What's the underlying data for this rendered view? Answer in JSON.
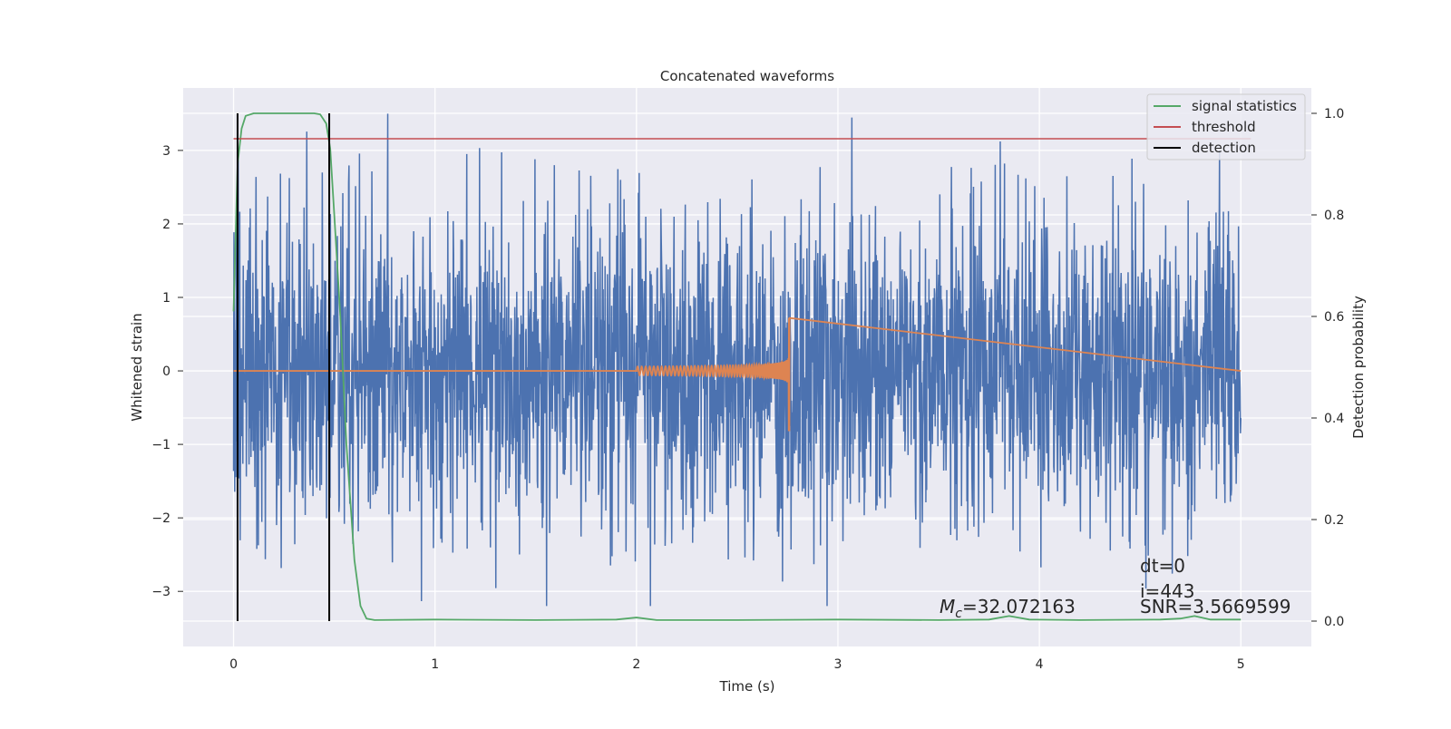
{
  "chart_data": {
    "type": "line",
    "title": "Concatenated waveforms",
    "xlabel": "Time (s)",
    "ylabel": "Whitened strain",
    "ylabel_right": "Detection probability",
    "xlim": [
      -0.25,
      5.35
    ],
    "ylim": [
      -3.75,
      3.85
    ],
    "ylim_right": [
      -0.05,
      1.05
    ],
    "x_ticks": [
      0,
      1,
      2,
      3,
      4,
      5
    ],
    "y_ticks": [
      -3,
      -2,
      -1,
      0,
      1,
      2,
      3
    ],
    "y_ticks_right": [
      0.0,
      0.2,
      0.4,
      0.6,
      0.8,
      1.0
    ],
    "grid": true,
    "legend_position": "top-right",
    "legend": [
      {
        "label": "signal statistics",
        "color": "#55a868"
      },
      {
        "label": "threshold",
        "color": "#c44e52"
      },
      {
        "label": "detection",
        "color": "#000000"
      }
    ],
    "noise_series": {
      "color": "#4c72b0",
      "x_start": 0,
      "x_end": 5,
      "amplitude_range": [
        -3.2,
        3.5
      ]
    },
    "injected_signal": {
      "color": "#dd8452",
      "x_start": 2.0,
      "x_end": 2.76,
      "peak_amplitude": 0.72,
      "min_amplitude": -0.82
    },
    "signal_statistics": {
      "x": [
        0,
        0.02,
        0.04,
        0.06,
        0.1,
        0.2,
        0.3,
        0.4,
        0.43,
        0.46,
        0.48,
        0.5,
        0.53,
        0.56,
        0.6,
        0.63,
        0.66,
        0.7,
        1.0,
        1.5,
        1.9,
        2.0,
        2.1,
        2.5,
        3.0,
        3.5,
        3.75,
        3.85,
        3.95,
        4.2,
        4.6,
        4.7,
        4.77,
        4.85,
        5.0
      ],
      "y": [
        0.61,
        0.9,
        0.97,
        0.995,
        1.0,
        1.0,
        1.0,
        1.0,
        0.998,
        0.98,
        0.93,
        0.8,
        0.6,
        0.35,
        0.12,
        0.03,
        0.005,
        0.002,
        0.003,
        0.002,
        0.003,
        0.007,
        0.002,
        0.002,
        0.003,
        0.002,
        0.003,
        0.01,
        0.003,
        0.002,
        0.003,
        0.005,
        0.01,
        0.003,
        0.003
      ]
    },
    "threshold": {
      "x": [
        0,
        5.05
      ],
      "y": 0.95
    },
    "detections": [
      0.02,
      0.475
    ],
    "annotations": {
      "dt": "dt=0",
      "i": "i=443",
      "snr": "SNR=3.5669599",
      "mc": "=32.072163",
      "mc_symbol": "M",
      "mc_subscript": "c"
    }
  }
}
